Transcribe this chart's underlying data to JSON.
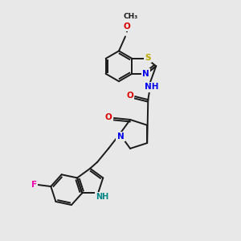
{
  "background_color": "#e8e8e8",
  "bond_color": "#1a1a1a",
  "atom_colors": {
    "N": "#0000ee",
    "O": "#dd0000",
    "S": "#bbaa00",
    "F": "#ee00aa",
    "NH": "#008888",
    "C": "#1a1a1a"
  },
  "figsize": [
    3.0,
    3.0
  ],
  "dpi": 100
}
